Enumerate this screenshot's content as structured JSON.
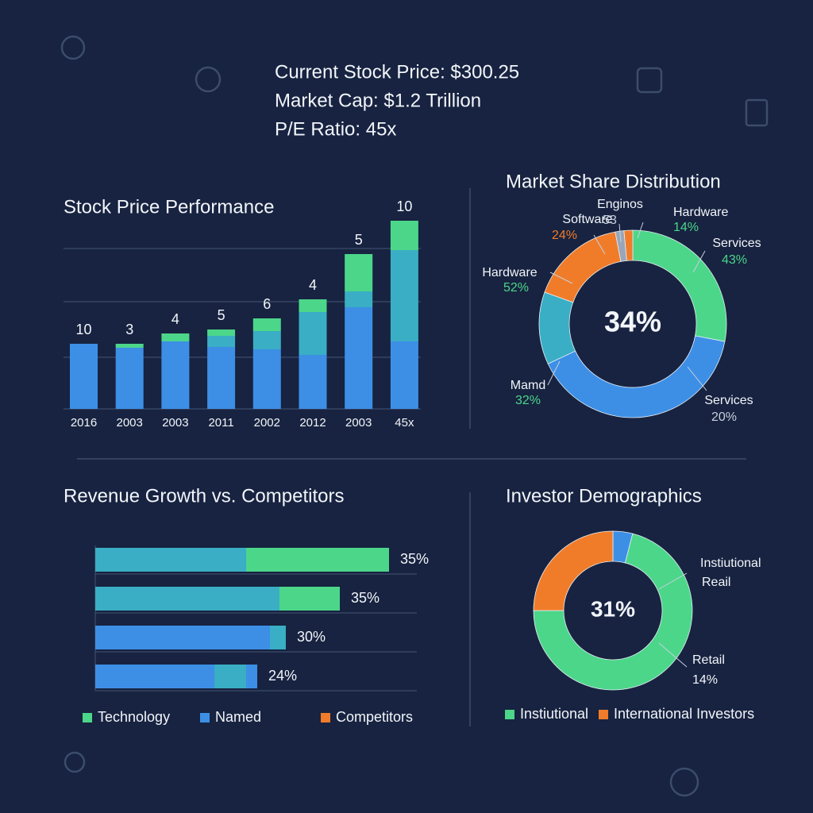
{
  "header": {
    "lines": [
      "Current Stock Price: $300.25",
      "Market Cap: $1.2 Trillion",
      "P/E Ratio: 45x"
    ]
  },
  "chart_data": [
    {
      "type": "bar",
      "stacked": true,
      "title": "Stock Price Performance",
      "categories": [
        "2016",
        "2003",
        "2003",
        "2011",
        "2002",
        "2012",
        "2003",
        "45x"
      ],
      "bar_labels": [
        "10",
        "3",
        "4",
        "5",
        "6",
        "4",
        "5",
        "10"
      ],
      "ylim": [
        0,
        240
      ],
      "gridlines": [
        65,
        135,
        202
      ],
      "series": [
        {
          "color": "#3d8fe6",
          "values": [
            82,
            77,
            85,
            78,
            75,
            68,
            128,
            85
          ]
        },
        {
          "color": "#3aaec4",
          "values": [
            0,
            0,
            0,
            14,
            23,
            54,
            20,
            115
          ]
        },
        {
          "color": "#4cd68a",
          "values": [
            0,
            5,
            10,
            8,
            16,
            16,
            47,
            37
          ]
        }
      ]
    },
    {
      "type": "donut",
      "title": "Market Share Distribution",
      "center_label": "34%",
      "values": [
        28,
        40,
        12.5,
        16.5,
        1.5,
        1.5
      ],
      "colors": [
        "#4cd68a",
        "#3d8fe6",
        "#3aaec4",
        "#f07c2a",
        "#9aa6b8",
        "#f07c2a"
      ],
      "annotations": [
        {
          "name": "Software",
          "label": "24%",
          "color": "#f07c2a"
        },
        {
          "name": "Enginos",
          "label": "5̄3",
          "color": "#c8d0dc"
        },
        {
          "name": "Hardware",
          "label": "14%",
          "color": "#4cd68a"
        },
        {
          "name": "Services",
          "label": "43%",
          "color": "#4cd68a"
        },
        {
          "name": "Hardware",
          "label": "52%",
          "color": "#4cd68a"
        },
        {
          "name": "Mamd",
          "label": "32%",
          "color": "#4cd68a"
        },
        {
          "name": "Services",
          "label": "20%",
          "color": "#c8d0dc"
        }
      ]
    },
    {
      "type": "hbar",
      "title": "Revenue Growth vs. Competitors",
      "xlim": [
        0,
        400
      ],
      "bars": [
        {
          "label": "35%",
          "segments": [
            {
              "color": "#3aaec4",
              "value": 190
            },
            {
              "color": "#4cd68a",
              "value": 180
            }
          ]
        },
        {
          "label": "35%",
          "segments": [
            {
              "color": "#3aaec4",
              "value": 232
            },
            {
              "color": "#4cd68a",
              "value": 76
            }
          ]
        },
        {
          "label": "30%",
          "segments": [
            {
              "color": "#3d8fe6",
              "value": 220
            },
            {
              "color": "#3aaec4",
              "value": 20
            }
          ]
        },
        {
          "label": "24%",
          "segments": [
            {
              "color": "#3d8fe6",
              "value": 150
            },
            {
              "color": "#3aaec4",
              "value": 40
            },
            {
              "color": "#3d8fe6",
              "value": 14
            }
          ]
        }
      ],
      "legend": [
        {
          "name": "Technology",
          "color": "#4cd68a"
        },
        {
          "name": "Named",
          "color": "#3d8fe6"
        },
        {
          "name": "Competitors",
          "color": "#f07c2a"
        }
      ]
    },
    {
      "type": "donut",
      "title": "Investor Demographics",
      "center_label": "31%",
      "values": [
        4,
        71,
        25
      ],
      "colors": [
        "#3d8fe6",
        "#4cd68a",
        "#f07c2a"
      ],
      "annotations": [
        {
          "name": "Instiutional",
          "label": "Reail",
          "color": "#f2f5fa"
        },
        {
          "name": "Retail",
          "label": "14%",
          "color": "#f2f5fa"
        }
      ],
      "legend": [
        {
          "name": "Instiutional",
          "color": "#4cd68a"
        },
        {
          "name": "International Investors",
          "color": "#f07c2a"
        }
      ]
    }
  ]
}
